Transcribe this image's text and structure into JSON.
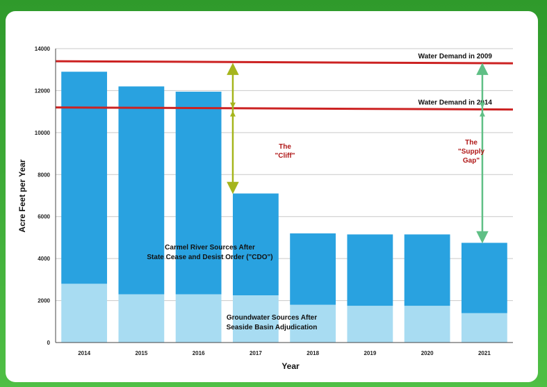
{
  "chart_data": {
    "type": "bar",
    "stacked": true,
    "categories": [
      "2014",
      "2015",
      "2016",
      "2017",
      "2018",
      "2019",
      "2020",
      "2021"
    ],
    "series": [
      {
        "values": [
          2800,
          2300,
          2300,
          2250,
          1800,
          1750,
          1750,
          1400
        ],
        "color": "#a8dcf2"
      },
      {
        "values": [
          10100,
          9900,
          9650,
          4850,
          3400,
          3400,
          3400,
          3350
        ],
        "color": "#29a2e0"
      }
    ],
    "xlabel": "Year",
    "ylabel": "Acre Feet per Year",
    "ylim": [
      0,
      14000
    ],
    "yticks": [
      0,
      2000,
      4000,
      6000,
      8000,
      10000,
      12000,
      14000
    ],
    "grid": true,
    "reference_lines": [
      {
        "label": "Water Demand in 2009",
        "y_start": 13400,
        "y_end": 13300,
        "color": "#cc2222"
      },
      {
        "label": "Water Demand in 2014",
        "y_start": 11200,
        "y_end": 11100,
        "color": "#cc2222"
      }
    ],
    "annotations": {
      "carmel": [
        "Carmel River Sources After",
        "State Cease and Desist Order (\"CDO\")"
      ],
      "groundwater": [
        "Groundwater Sources After",
        "Seaside Basin Adjudication"
      ],
      "cliff": [
        "The",
        "\"Cliff\""
      ],
      "supply_gap": [
        "The",
        "\"Supply",
        "Gap\""
      ]
    },
    "arrows": [
      {
        "category": "2017",
        "y_from": 13300,
        "y_to": 7100,
        "color": "#a5b51c"
      },
      {
        "category": "2021",
        "y_from": 13300,
        "y_to": 4750,
        "color": "#5fbf85"
      }
    ]
  }
}
